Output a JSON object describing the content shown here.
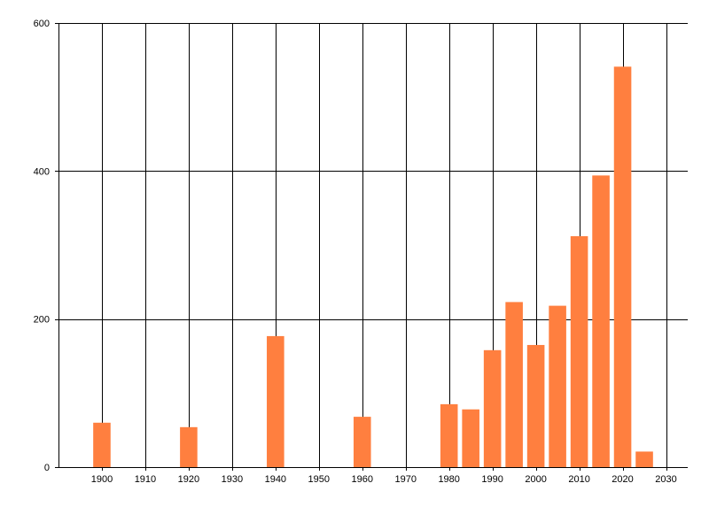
{
  "chart_data": {
    "type": "bar",
    "x": [
      1900,
      1920,
      1940,
      1960,
      1980,
      1985,
      1990,
      1995,
      2000,
      2005,
      2010,
      2015,
      2020,
      2025
    ],
    "values": [
      60,
      54,
      177,
      68,
      85,
      78,
      158,
      223,
      165,
      218,
      312,
      394,
      541,
      21
    ],
    "xlim": [
      1890,
      2035
    ],
    "ylim": [
      0,
      600
    ],
    "xticks": [
      "1900",
      "1910",
      "1920",
      "1930",
      "1940",
      "1950",
      "1960",
      "1970",
      "1980",
      "1990",
      "2000",
      "2010",
      "2020",
      "2030"
    ],
    "yticks": [
      "0",
      "200",
      "400",
      "600"
    ],
    "bar_width_years": 4,
    "bar_color": "#ff7f3f",
    "grid": true,
    "legend": "none"
  }
}
